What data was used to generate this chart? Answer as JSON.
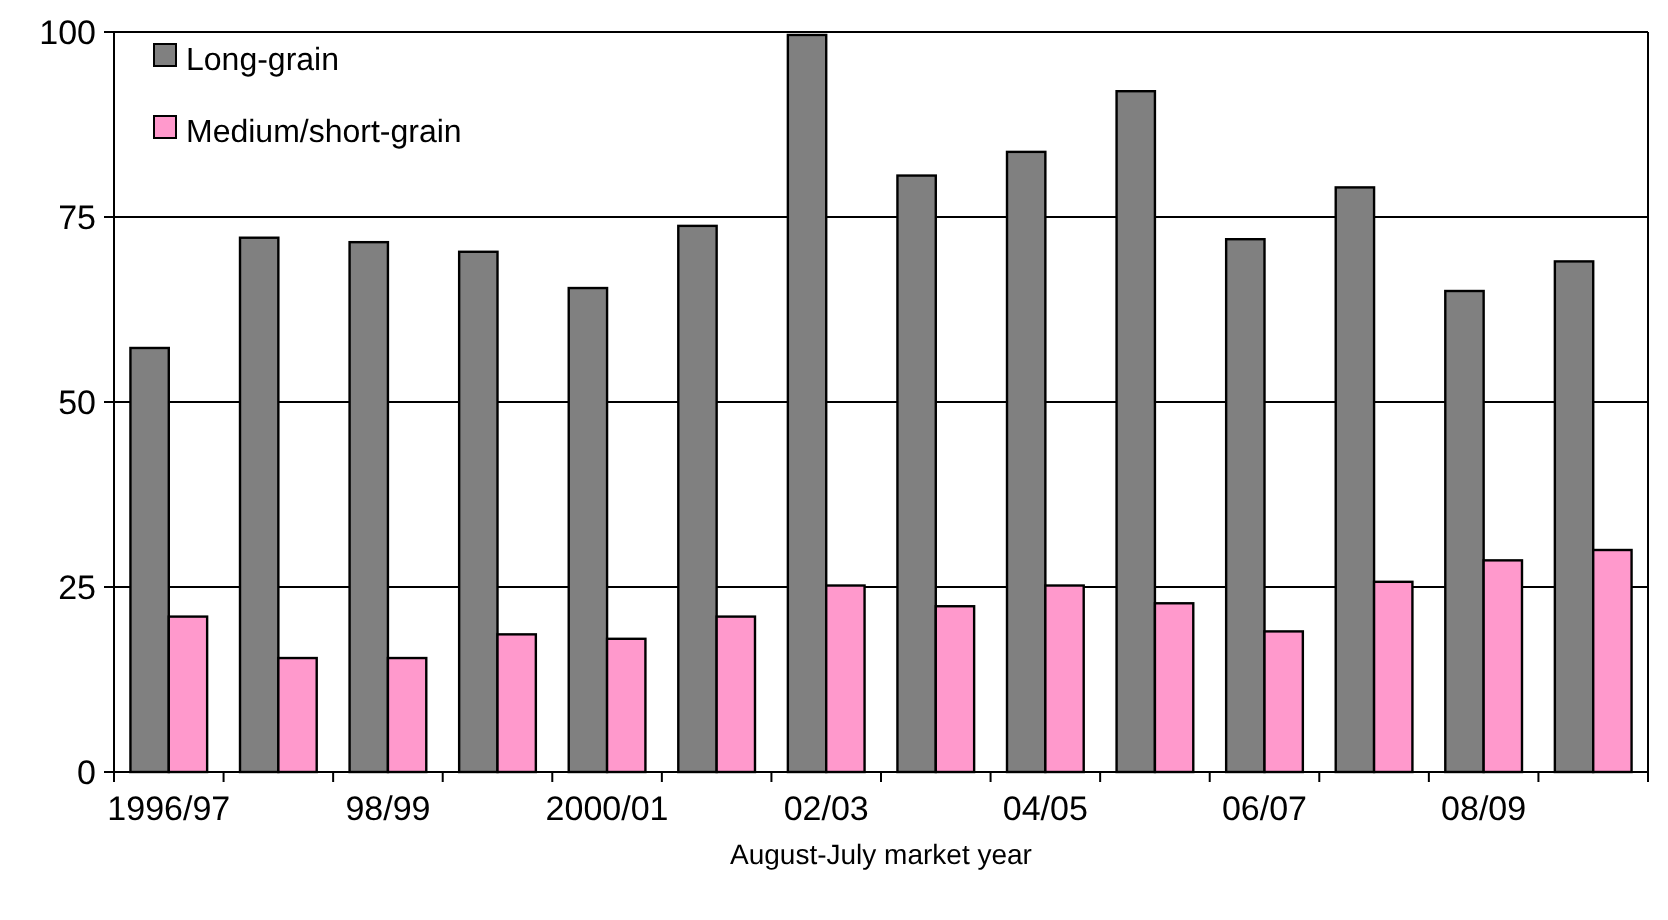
{
  "chart_data": {
    "type": "bar",
    "xlabel": "August-July market year",
    "categories": [
      "1996/97",
      null,
      "98/99",
      null,
      "2000/01",
      null,
      "02/03",
      null,
      "04/05",
      null,
      "06/07",
      null,
      "08/09",
      null
    ],
    "series": [
      {
        "name": "Long-grain",
        "color": "#808080",
        "values": [
          57.3,
          72.2,
          71.6,
          70.3,
          65.4,
          73.8,
          99.6,
          80.6,
          83.8,
          92,
          72,
          79,
          65,
          69
        ]
      },
      {
        "name": "Medium/short-grain",
        "color": "#ff99cc",
        "values": [
          21,
          15.4,
          15.4,
          18.6,
          18,
          21,
          25.2,
          22.4,
          25.2,
          22.8,
          19,
          25.7,
          28.6,
          30
        ]
      }
    ],
    "ylim": [
      0,
      100
    ],
    "yticks": [
      0,
      25,
      50,
      75,
      100
    ],
    "grid": "y",
    "legend": "top left"
  }
}
